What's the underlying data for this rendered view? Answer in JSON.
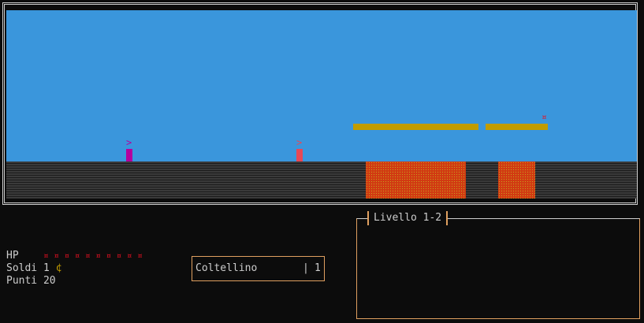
{
  "colors": {
    "sky": "#3a96dc",
    "platform": "#c19c00",
    "lava": "#d13a12",
    "player": "#b4009e",
    "enemy": "#e74856",
    "coin": "#c19c00",
    "hp": "#e81123",
    "border": "#e0a060"
  },
  "world": {
    "player_glyph": ">",
    "enemy_glyph": ">",
    "item_glyph": "¤"
  },
  "status": {
    "hp_label": "HP",
    "hp_icons": "¤ ¤ ¤ ¤ ¤ ¤ ¤ ¤ ¤ ¤",
    "hp_count": 10,
    "money_label": "Soldi 1",
    "money_icon": "¢",
    "score_label": "Punti 20"
  },
  "inventory": {
    "item": "Coltellino",
    "separator": "|",
    "quantity": "1"
  },
  "level": {
    "title": "Livello 1-2"
  }
}
